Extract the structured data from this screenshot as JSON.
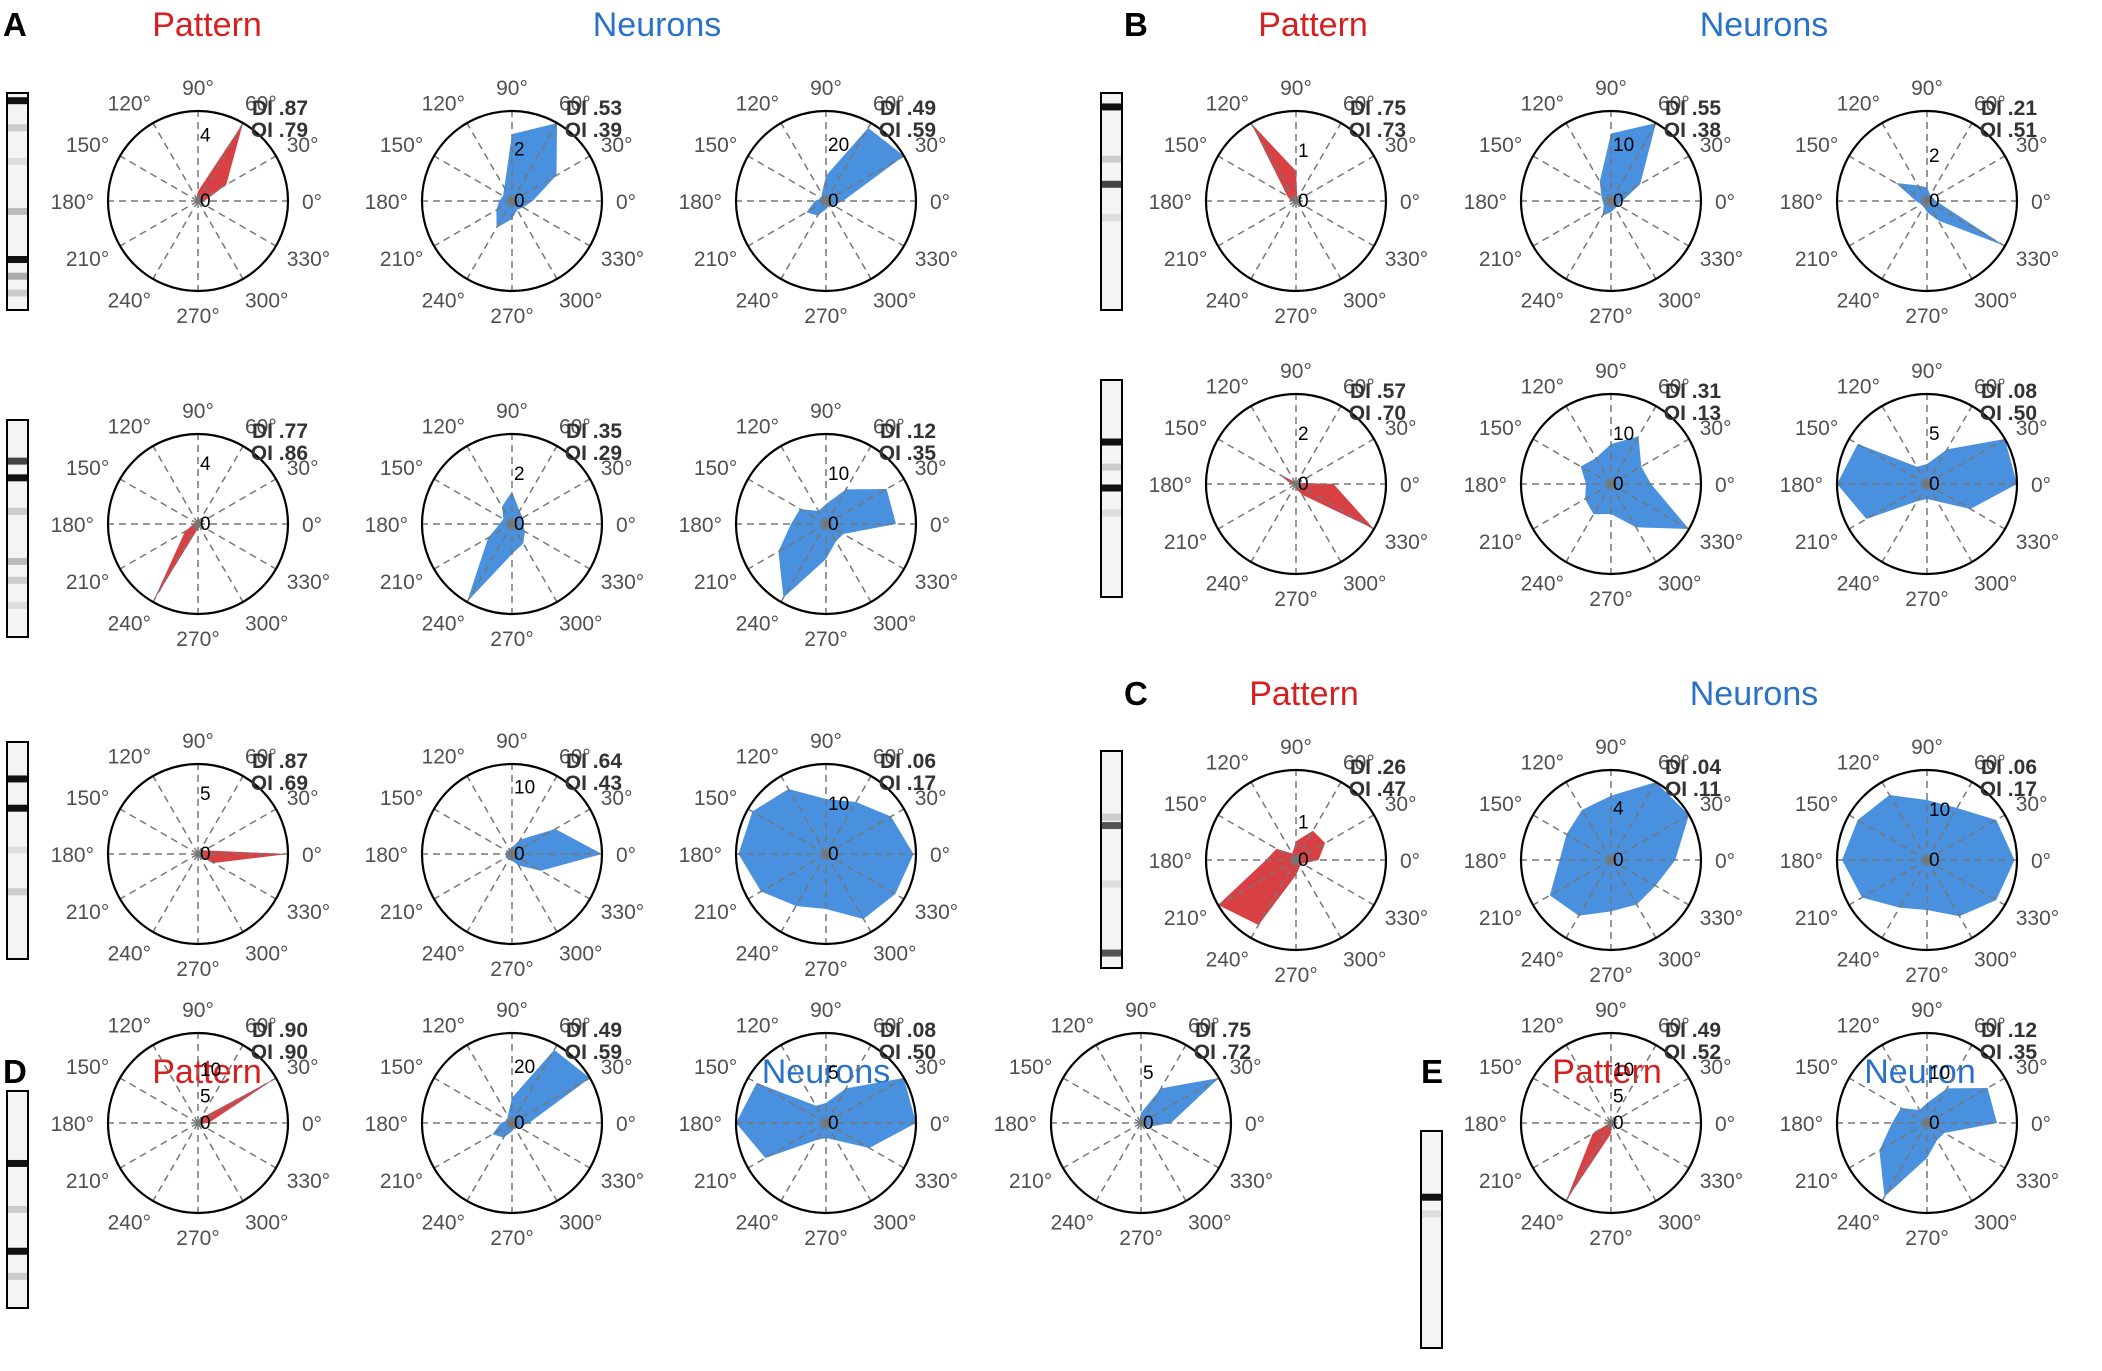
{
  "colors": {
    "pattern_fill": "#d6363a",
    "pattern_title": "#d42020",
    "neuron_fill": "#3f8bdc",
    "neuron_title": "#2a72c8",
    "angle_label": "#505050",
    "grid": "#777777"
  },
  "chart_data": {
    "type": "polar-area",
    "angle_labels": [
      "0°",
      "30°",
      "60°",
      "90°",
      "120°",
      "150°",
      "180°",
      "210°",
      "240°",
      "270°",
      "300°",
      "330°"
    ],
    "directions_deg": [
      0,
      30,
      60,
      90,
      120,
      150,
      180,
      210,
      240,
      270,
      300,
      330
    ],
    "panels": [
      {
        "label": "A",
        "titles": [
          "Pattern",
          "Neurons"
        ],
        "rows": [
          {
            "pattern_strip_bands": [
              {
                "pos": 0.02,
                "shade": "#111111"
              },
              {
                "pos": 0.15,
                "shade": "#cccccc"
              },
              {
                "pos": 0.31,
                "shade": "#dddddd"
              },
              {
                "pos": 0.55,
                "shade": "#bbbbbb"
              },
              {
                "pos": 0.78,
                "shade": "#111111"
              },
              {
                "pos": 0.86,
                "shade": "#aaaaaa"
              },
              {
                "pos": 0.94,
                "shade": "#cccccc"
              }
            ],
            "plots": [
              {
                "kind": "pattern",
                "max": 5.5,
                "tick": 4,
                "ticks": [
                  "4",
                  "0"
                ],
                "DI": "DI .87",
                "OI": "OI .79",
                "values": [
                  0.4,
                  2.0,
                  5.5,
                  0.6,
                  0.2,
                  0.2,
                  0.1,
                  0.1,
                  0.1,
                  0.1,
                  0.1,
                  0.2
                ]
              },
              {
                "kind": "neuron",
                "max": 3.5,
                "tick": 2,
                "ticks": [
                  "2",
                  "0"
                ],
                "DI": "DI .53",
                "OI": "OI .39",
                "values": [
                  0.8,
                  2.0,
                  3.5,
                  2.6,
                  0.6,
                  0.4,
                  0.5,
                  0.7,
                  1.2,
                  0.7,
                  0.4,
                  0.5
                ]
              },
              {
                "kind": "neuron",
                "max": 32,
                "tick": 20,
                "ticks": [
                  "20",
                  "0"
                ],
                "DI": "DI .49",
                "OI": "OI .59",
                "values": [
                  6,
                  32,
                  30,
                  9,
                  3,
                  2,
                  4,
                  8,
                  6,
                  3,
                  2,
                  3
                ]
              }
            ]
          },
          {
            "pattern_strip_bands": [
              {
                "pos": 0.18,
                "shade": "#444444"
              },
              {
                "pos": 0.26,
                "shade": "#111111"
              },
              {
                "pos": 0.42,
                "shade": "#cccccc"
              },
              {
                "pos": 0.66,
                "shade": "#bbbbbb"
              },
              {
                "pos": 0.75,
                "shade": "#cccccc"
              },
              {
                "pos": 0.87,
                "shade": "#dddddd"
              }
            ],
            "plots": [
              {
                "kind": "pattern",
                "max": 6,
                "tick": 4,
                "ticks": [
                  "4",
                  "0"
                ],
                "DI": "DI .77",
                "OI": "OI .86",
                "values": [
                  0.1,
                  0.1,
                  0.3,
                  0.4,
                  0.2,
                  0.2,
                  0.3,
                  1.0,
                  6.0,
                  0.3,
                  0.2,
                  0.1
                ]
              },
              {
                "kind": "neuron",
                "max": 3.6,
                "tick": 2,
                "ticks": [
                  "2",
                  "0"
                ],
                "DI": "DI .35",
                "OI": "OI .29",
                "values": [
                  0.4,
                  0.5,
                  0.6,
                  1.3,
                  0.8,
                  0.4,
                  0.5,
                  1.1,
                  3.6,
                  1.2,
                  0.9,
                  0.6
                ]
              },
              {
                "kind": "neuron",
                "max": 18,
                "tick": 10,
                "ticks": [
                  "10",
                  "0"
                ],
                "DI": "DI .12",
                "OI": "OI .35",
                "values": [
                  14,
                  14,
                  8,
                  4,
                  3,
                  6,
                  7,
                  11,
                  17,
                  7,
                  4,
                  4
                ]
              }
            ]
          },
          {
            "pattern_strip_bands": [
              {
                "pos": 0.16,
                "shade": "#111111"
              },
              {
                "pos": 0.3,
                "shade": "#111111"
              },
              {
                "pos": 0.5,
                "shade": "#dddddd"
              },
              {
                "pos": 0.7,
                "shade": "#cccccc"
              }
            ],
            "plots": [
              {
                "kind": "pattern",
                "max": 7.5,
                "tick": 5,
                "ticks": [
                  "5",
                  "0"
                ],
                "DI": "DI .87",
                "OI": "OI .69",
                "values": [
                  7.5,
                  0.6,
                  0.2,
                  0.1,
                  0.1,
                  0.1,
                  0.2,
                  0.1,
                  0.1,
                  0.1,
                  0.2,
                  1.5
                ]
              },
              {
                "kind": "neuron",
                "max": 13.5,
                "tick": 10,
                "ticks": [
                  "10",
                  "0"
                ],
                "DI": "DI .64",
                "OI": "OI .43",
                "values": [
                  13.5,
                  7.5,
                  2.5,
                  1.0,
                  0.8,
                  0.8,
                  1.0,
                  1.0,
                  1.0,
                  1.0,
                  2.0,
                  5.0
                ]
              },
              {
                "kind": "neuron",
                "max": 18,
                "tick": 10,
                "ticks": [
                  "10",
                  "0"
                ],
                "DI": "DI .06",
                "OI": "OI .17",
                "values": [
                  17.5,
                  15,
                  12,
                  11,
                  15,
                  17,
                  17.5,
                  15,
                  12,
                  11,
                  15,
                  16
                ]
              }
            ]
          }
        ]
      },
      {
        "label": "B",
        "titles": [
          "Pattern",
          "Neurons"
        ],
        "rows": [
          {
            "pattern_strip_bands": [
              {
                "pos": 0.05,
                "shade": "#111111"
              },
              {
                "pos": 0.3,
                "shade": "#cccccc"
              },
              {
                "pos": 0.42,
                "shade": "#444444"
              },
              {
                "pos": 0.58,
                "shade": "#dddddd"
              }
            ],
            "plots": [
              {
                "kind": "pattern",
                "max": 1.8,
                "tick": 1,
                "ticks": [
                  "1",
                  "0"
                ],
                "DI": "DI .75",
                "OI": "OI .73",
                "values": [
                  0.05,
                  0.05,
                  0.05,
                  0.6,
                  1.8,
                  0.2,
                  0.1,
                  0.05,
                  0.05,
                  0.05,
                  0.05,
                  0.05
                ]
              },
              {
                "kind": "neuron",
                "max": 16,
                "tick": 10,
                "ticks": [
                  "10",
                  "0"
                ],
                "DI": "DI .55",
                "OI": "OI .38",
                "values": [
                  2,
                  6,
                  16,
                  12,
                  4,
                  2,
                  1.5,
                  1.5,
                  3,
                  2,
                  1.5,
                  1.5
                ]
              },
              {
                "kind": "neuron",
                "max": 4,
                "tick": 2,
                "ticks": [
                  "2",
                  "0"
                ],
                "DI": "DI .21",
                "OI": "OI .51",
                "values": [
                  0.4,
                  0.3,
                  0.3,
                  0.6,
                  0.8,
                  1.6,
                  0.5,
                  0.3,
                  0.3,
                  0.5,
                  1.0,
                  4.0
                ]
              }
            ]
          },
          {
            "pattern_strip_bands": [
              {
                "pos": 0.28,
                "shade": "#111111"
              },
              {
                "pos": 0.4,
                "shade": "#cccccc"
              },
              {
                "pos": 0.5,
                "shade": "#111111"
              },
              {
                "pos": 0.62,
                "shade": "#dddddd"
              }
            ],
            "plots": [
              {
                "kind": "pattern",
                "max": 3.6,
                "tick": 2,
                "ticks": [
                  "2",
                  "0"
                ],
                "DI": "DI .57",
                "OI": "OI .70",
                "values": [
                  1.5,
                  0.1,
                  0.1,
                  0.1,
                  0.1,
                  0.8,
                  0.2,
                  0.1,
                  0.1,
                  0.2,
                  0.5,
                  3.6
                ]
              },
              {
                "kind": "neuron",
                "max": 18,
                "tick": 10,
                "ticks": [
                  "10",
                  "0"
                ],
                "DI": "DI .31",
                "OI": "OI .13",
                "values": [
                  8,
                  7,
                  11,
                  8,
                  6,
                  7,
                  5,
                  6,
                  7,
                  6,
                  10,
                  18
                ]
              },
              {
                "kind": "neuron",
                "max": 9,
                "tick": 5,
                "ticks": [
                  "5",
                  "0"
                ],
                "DI": "DI .08",
                "OI": "OI .50",
                "values": [
                  9,
                  9,
                  4,
                  2,
                  2,
                  8,
                  9,
                  7,
                  2,
                  1.5,
                  2,
                  5
                ]
              }
            ]
          }
        ]
      },
      {
        "label": "C",
        "titles": [
          "Pattern",
          "Neurons"
        ],
        "rows": [
          {
            "pattern_strip_bands": [
              {
                "pos": 0.3,
                "shade": "#cccccc"
              },
              {
                "pos": 0.34,
                "shade": "#555555"
              },
              {
                "pos": 0.62,
                "shade": "#dddddd"
              },
              {
                "pos": 0.95,
                "shade": "#555555"
              }
            ],
            "plots": [
              {
                "kind": "pattern",
                "max": 2.4,
                "tick": 1,
                "ticks": [
                  "1",
                  "0"
                ],
                "DI": "DI .26",
                "OI": "OI .47",
                "values": [
                  0.6,
                  0.9,
                  0.9,
                  0.5,
                  0.2,
                  0.6,
                  0.8,
                  2.4,
                  2.0,
                  0.4,
                  0.2,
                  0.2
                ]
              },
              {
                "kind": "neuron",
                "max": 7,
                "tick": 4,
                "ticks": [
                  "4",
                  "0"
                ],
                "DI": "DI .04",
                "OI": "OI .11",
                "values": [
                  5,
                  7,
                  7,
                  5,
                  4.5,
                  4,
                  4,
                  5.5,
                  5,
                  4,
                  4,
                  4
                ]
              },
              {
                "kind": "neuron",
                "max": 18,
                "tick": 10,
                "ticks": [
                  "10",
                  "0"
                ],
                "DI": "DI .06",
                "OI": "OI .17",
                "values": [
                  17.5,
                  16,
                  12,
                  12,
                  15,
                  16,
                  17,
                  15,
                  11,
                  10,
                  13,
                  16
                ]
              }
            ]
          }
        ]
      },
      {
        "label": "D",
        "titles": [
          "Pattern",
          "Neurons"
        ],
        "rows": [
          {
            "pattern_strip_bands": [
              {
                "pos": 0.33,
                "shade": "#111111"
              },
              {
                "pos": 0.55,
                "shade": "#cccccc"
              },
              {
                "pos": 0.75,
                "shade": "#111111"
              },
              {
                "pos": 0.87,
                "shade": "#cccccc"
              }
            ],
            "plots": [
              {
                "kind": "pattern",
                "max": 17,
                "tick": 10,
                "ticks": [
                  "10",
                  "5",
                  "0"
                ],
                "DI": "DI .90",
                "OI": "OI .90",
                "values": [
                  2,
                  17,
                  1,
                  0.5,
                  0.3,
                  0.3,
                  0.3,
                  0.3,
                  0.3,
                  0.3,
                  0.3,
                  0.3
                ]
              },
              {
                "kind": "neuron",
                "max": 32,
                "tick": 20,
                "ticks": [
                  "20",
                  "0"
                ],
                "DI": "DI .49",
                "OI": "OI .59",
                "values": [
                  6,
                  32,
                  30,
                  9,
                  3,
                  2,
                  4,
                  8,
                  6,
                  3,
                  2,
                  3
                ]
              },
              {
                "kind": "neuron",
                "max": 9,
                "tick": 5,
                "ticks": [
                  "5",
                  "0"
                ],
                "DI": "DI .08",
                "OI": "OI .50",
                "values": [
                  9,
                  9,
                  4,
                  2,
                  2,
                  8,
                  9,
                  7,
                  2,
                  1.5,
                  2,
                  5
                ]
              },
              {
                "kind": "neuron",
                "max": 9,
                "tick": 5,
                "ticks": [
                  "5",
                  "0"
                ],
                "DI": "DI .75",
                "OI": "OI .72",
                "values": [
                  3,
                  9,
                  4,
                  1,
                  0.3,
                  0.3,
                  0.3,
                  0.3,
                  0.3,
                  0.3,
                  0.3,
                  0.8
                ]
              }
            ]
          }
        ]
      },
      {
        "label": "E",
        "titles": [
          "Pattern",
          "Neuron"
        ],
        "rows": [
          {
            "pattern_strip_bands": [
              {
                "pos": 0.3,
                "shade": "#111111"
              },
              {
                "pos": 0.38,
                "shade": "#dddddd"
              }
            ],
            "plots": [
              {
                "kind": "pattern",
                "max": 17,
                "tick": 10,
                "ticks": [
                  "10",
                  "5",
                  "0"
                ],
                "DI": "DI .49",
                "OI": "OI .52",
                "values": [
                  0.5,
                  0.5,
                  0.5,
                  0.5,
                  0.3,
                  0.3,
                  0.3,
                  4,
                  17,
                  2,
                  0.3,
                  0.3
                ]
              },
              {
                "kind": "neuron",
                "max": 18,
                "tick": 10,
                "ticks": [
                  "10",
                  "0"
                ],
                "DI": "DI .12",
                "OI": "OI .35",
                "values": [
                  14,
                  14,
                  8,
                  4,
                  3,
                  6,
                  7,
                  11,
                  17,
                  7,
                  4,
                  4
                ]
              }
            ]
          }
        ]
      }
    ]
  }
}
